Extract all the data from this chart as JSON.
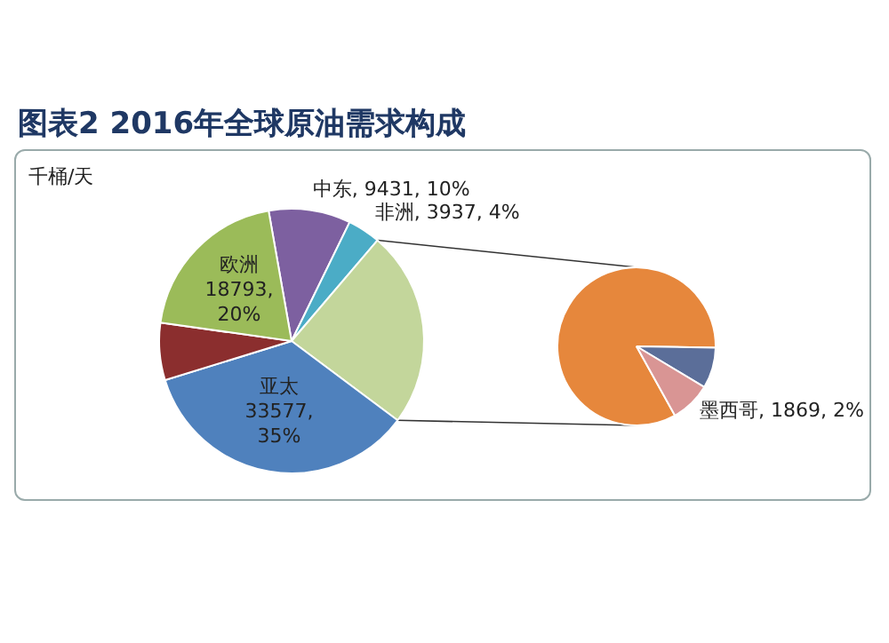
{
  "chart_data": [
    {
      "type": "pie",
      "title": "图表2 2016年全球原油需求构成",
      "annotations": [
        "千桶/天"
      ],
      "categories": [
        "中东",
        "非洲",
        null,
        "亚太",
        null,
        "欧洲"
      ],
      "values": [
        10,
        4,
        24,
        35,
        7,
        20
      ],
      "value_labels": [
        "9431, 10%",
        "3937, 4%",
        null,
        "33577, 35%",
        null,
        "18793, 20%"
      ],
      "colors": [
        "#7d60a0",
        "#4bacc6",
        "#c3d69b",
        "#4f81bd",
        "#8b2e2e",
        "#9bbb59"
      ]
    },
    {
      "type": "pie",
      "categories": [
        null,
        null,
        "墨西哥"
      ],
      "values": [
        20,
        2,
        2
      ],
      "value_labels": [
        null,
        null,
        "1869, 2%"
      ],
      "colors": [
        "#e6873c",
        "#5b6e99",
        "#d99594"
      ]
    }
  ]
}
